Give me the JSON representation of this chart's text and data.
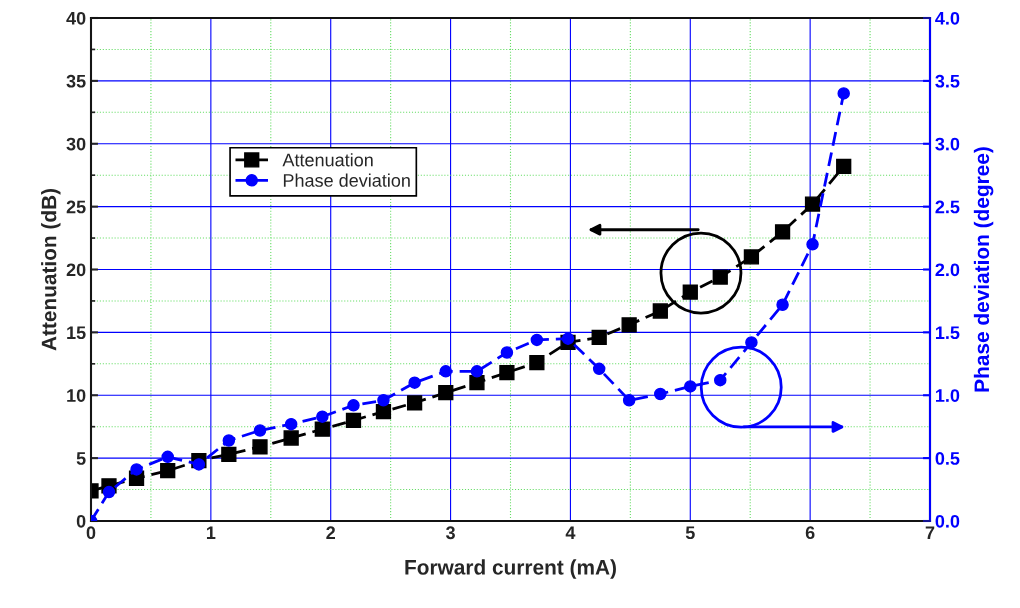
{
  "chart_data": {
    "type": "line",
    "xlabel": "Forward current (mA)",
    "ylabel": "Attenuation (dB)",
    "y2label": "Phase deviation (degree)",
    "xlim": [
      0,
      7
    ],
    "xticks": [
      0,
      {
        "value": 0.5,
        "label": null
      },
      1,
      {
        "value": 1.5,
        "label": null
      },
      2,
      {
        "value": 2.5,
        "label": null
      },
      3,
      {
        "value": 3.5,
        "label": null
      },
      4,
      {
        "value": 4.5,
        "label": null
      },
      5,
      {
        "value": 5.5,
        "label": null
      },
      6,
      {
        "value": 6.5,
        "label": null
      },
      7
    ],
    "ylim": [
      0,
      40
    ],
    "yticks": [
      0,
      {
        "value": 2.5,
        "label": null
      },
      5,
      {
        "value": 7.5,
        "label": null
      },
      10,
      {
        "value": 12.5,
        "label": null
      },
      15,
      {
        "value": 17.5,
        "label": null
      },
      20,
      {
        "value": 22.5,
        "label": null
      },
      25,
      {
        "value": 27.5,
        "label": null
      },
      30,
      {
        "value": 32.5,
        "label": null
      },
      35,
      {
        "value": 37.5,
        "label": null
      },
      40
    ],
    "y2lim": [
      0,
      4
    ],
    "y2ticks": [
      {
        "value": 0,
        "label": "0.0"
      },
      {
        "value": 0.5,
        "label": "0.5"
      },
      {
        "value": 1,
        "label": "1.0"
      },
      {
        "value": 1.5,
        "label": "1.5"
      },
      {
        "value": 2,
        "label": "2.0"
      },
      {
        "value": 2.5,
        "label": "2.5"
      },
      {
        "value": 3,
        "label": "3.0"
      },
      {
        "value": 3.5,
        "label": "3.5"
      },
      {
        "value": 4,
        "label": "4.0"
      }
    ],
    "x": [
      0,
      0.15,
      0.38,
      0.64,
      0.9,
      1.15,
      1.41,
      1.67,
      1.93,
      2.19,
      2.44,
      2.7,
      2.96,
      3.22,
      3.47,
      3.72,
      3.98,
      4.24,
      4.49,
      4.75,
      5.0,
      5.25,
      5.51,
      5.77,
      6.02,
      6.28
    ],
    "series": [
      {
        "name": "Attenuation",
        "color": "#000000",
        "marker": "square",
        "line_style": "dashed",
        "values": [
          2.4,
          2.8,
          3.4,
          4.0,
          4.8,
          5.3,
          5.9,
          6.6,
          7.3,
          8.0,
          8.7,
          9.4,
          10.2,
          11.0,
          11.8,
          12.6,
          14.2,
          14.6,
          15.6,
          16.7,
          18.2,
          19.4,
          21.0,
          23.0,
          25.2,
          28.2
        ]
      },
      {
        "name": "Phase deviation",
        "color": "#0000ff",
        "marker": "circle",
        "line_style": "dashed",
        "axis": "y2",
        "values": [
          0.0,
          0.23,
          0.41,
          0.51,
          0.45,
          0.64,
          0.72,
          0.77,
          0.83,
          0.92,
          0.96,
          1.1,
          1.19,
          1.19,
          1.34,
          1.44,
          1.45,
          1.21,
          0.96,
          1.01,
          1.07,
          1.12,
          1.42,
          1.72,
          2.2,
          3.4
        ]
      }
    ],
    "grid": true,
    "legend": "top left"
  }
}
